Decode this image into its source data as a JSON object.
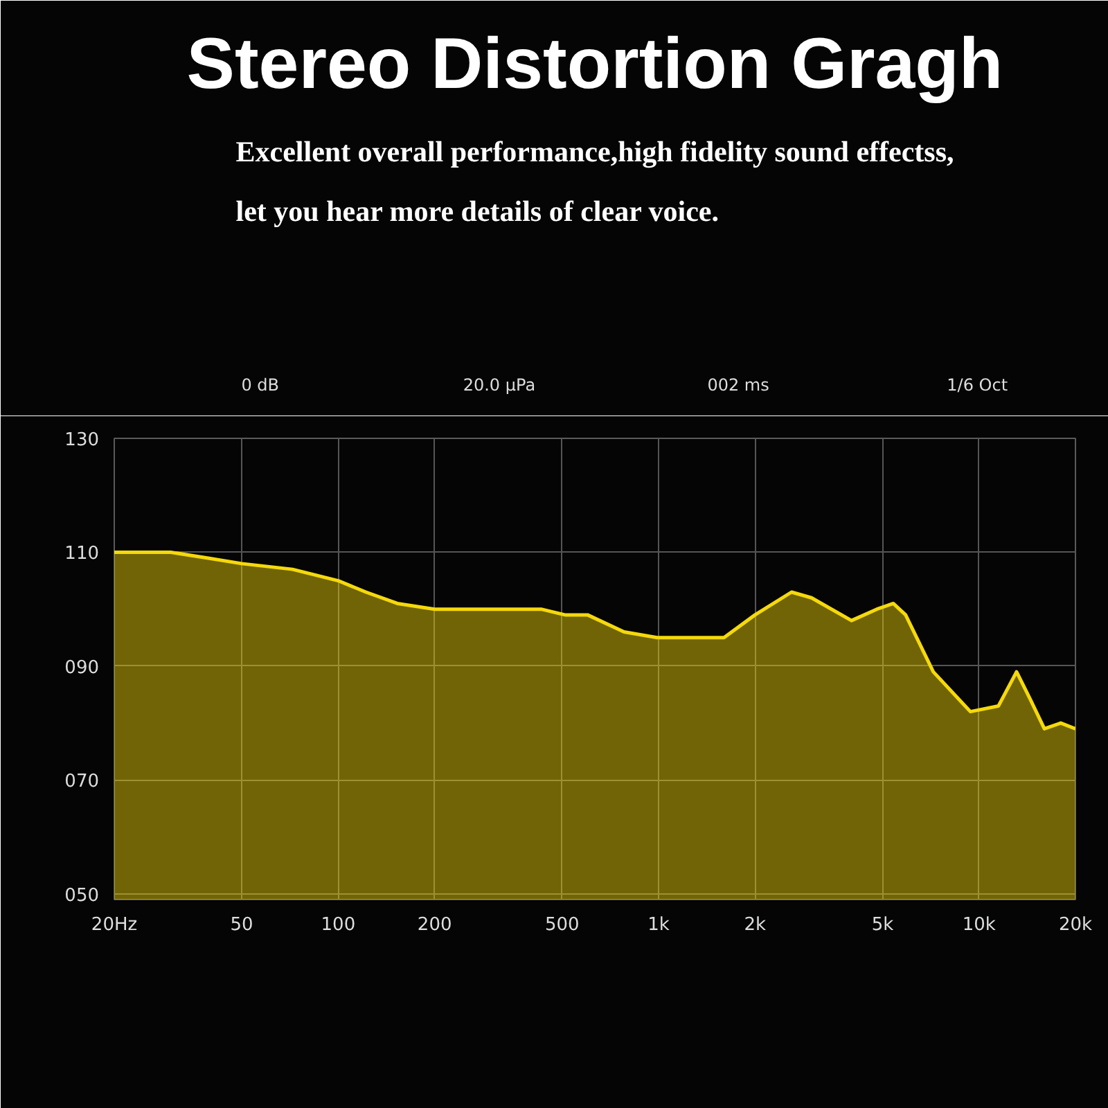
{
  "chart_data": {
    "type": "area",
    "title": "Stereo Distortion Gragh",
    "subtitle": "Excellent overall performance,high fidelity sound effectss,\nlet you hear more details of clear voice.",
    "annotations": [
      "0  dB",
      "20.0  µPa",
      "002  ms",
      "1/6  Oct"
    ],
    "x": [
      20,
      30,
      39,
      50,
      72,
      100,
      122,
      153,
      200,
      280,
      430,
      510,
      600,
      780,
      990,
      1400,
      1600,
      2000,
      2600,
      3000,
      4000,
      4800,
      5400,
      5900,
      7200,
      9400,
      11500,
      13100,
      14500,
      16000,
      18000,
      20000
    ],
    "series": [
      {
        "color": "#f5d90a",
        "values": [
          110,
          110,
          109,
          108,
          107,
          105,
          103,
          101,
          100,
          100,
          100,
          99,
          99,
          96,
          95,
          95,
          95,
          99,
          103,
          102,
          98,
          100,
          101,
          99,
          89,
          82,
          83,
          89,
          84,
          79,
          80,
          79
        ]
      }
    ],
    "xlim": [
      20,
      20000
    ],
    "ylim": [
      49,
      130
    ],
    "xticks": [
      {
        "value": 20,
        "label": "20Hz"
      },
      50,
      100,
      200,
      500,
      {
        "value": 1000,
        "label": "1k"
      },
      {
        "value": 2000,
        "label": "2k"
      },
      {
        "value": 5000,
        "label": "5k"
      },
      {
        "value": 10000,
        "label": "10k"
      },
      {
        "value": 20000,
        "label": "20k"
      }
    ],
    "yticks": [
      130,
      110,
      {
        "value": 90,
        "label": "090"
      },
      {
        "value": 70,
        "label": "070"
      },
      {
        "value": 50,
        "label": "050"
      }
    ],
    "log": "x",
    "grid": true
  }
}
